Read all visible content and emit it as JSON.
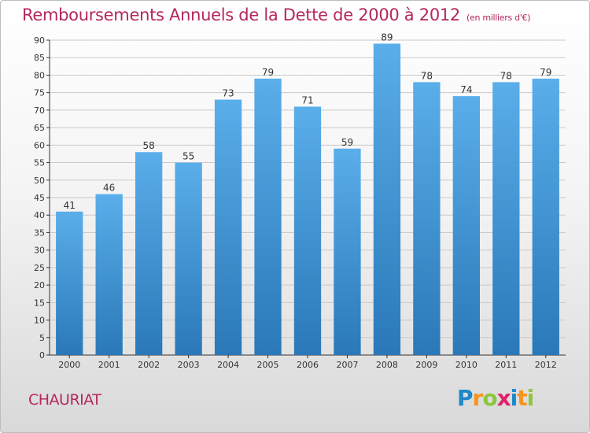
{
  "header": {
    "title": "Remboursements Annuels de la Dette de 2000 à 2012",
    "unit": "(en milliers d'€)"
  },
  "footer": {
    "commune": "CHAURIAT",
    "logo_letters": [
      "P",
      "r",
      "o",
      "x",
      "i",
      "t",
      "i"
    ]
  },
  "colors": {
    "title": "#b5265f",
    "bar_top": "#5aaeea",
    "bar_bottom": "#2a78b8",
    "grid": "#c9c9c9",
    "axis": "#333333"
  },
  "chart_data": {
    "type": "bar",
    "title": "Remboursements Annuels de la Dette de 2000 à 2012",
    "xlabel": "",
    "ylabel": "",
    "categories": [
      "2000",
      "2001",
      "2002",
      "2003",
      "2004",
      "2005",
      "2006",
      "2007",
      "2008",
      "2009",
      "2010",
      "2011",
      "2012"
    ],
    "values": [
      41,
      46,
      58,
      55,
      73,
      79,
      71,
      59,
      89,
      78,
      74,
      78,
      79
    ],
    "ylim": [
      0,
      90
    ],
    "yticks": [
      0,
      5,
      10,
      15,
      20,
      25,
      30,
      35,
      40,
      45,
      50,
      55,
      60,
      65,
      70,
      75,
      80,
      85,
      90
    ],
    "grid": true,
    "data_labels": true
  }
}
